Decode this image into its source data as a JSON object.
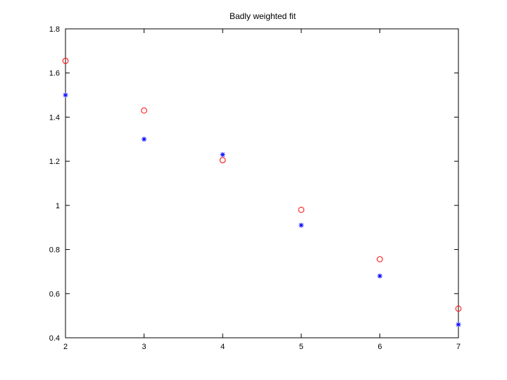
{
  "chart_data": {
    "type": "scatter",
    "title": "Badly weighted fit",
    "xlabel": "",
    "ylabel": "",
    "xlim": [
      2,
      7
    ],
    "ylim": [
      0.4,
      1.8
    ],
    "xticks": [
      "2",
      "3",
      "4",
      "5",
      "6",
      "7"
    ],
    "yticks": [
      "0.4",
      "0.6",
      "0.8",
      "1",
      "1.2",
      "1.4",
      "1.6",
      "1.8"
    ],
    "grid": false,
    "series": [
      {
        "marker": "circle",
        "color": "#ff0000",
        "x": [
          2,
          3,
          4,
          5,
          6,
          7
        ],
        "y": [
          1.655,
          1.43,
          1.205,
          0.98,
          0.756,
          0.532
        ]
      },
      {
        "marker": "asterisk",
        "color": "#0000ff",
        "x": [
          2,
          3,
          4,
          5,
          6,
          7
        ],
        "y": [
          1.5,
          1.3,
          1.23,
          0.91,
          0.68,
          0.46
        ]
      }
    ]
  }
}
